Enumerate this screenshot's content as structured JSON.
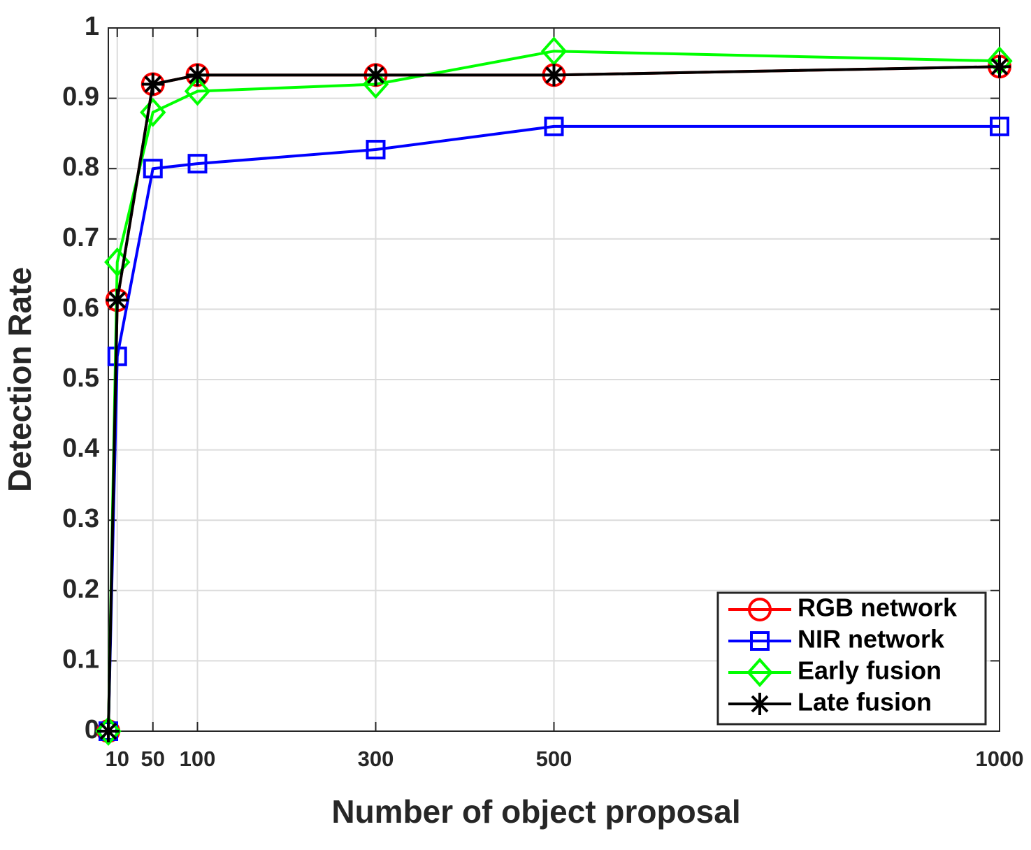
{
  "chart_data": {
    "type": "line",
    "xlabel": "Number of object proposal",
    "ylabel": "Detection Rate",
    "x": [
      0,
      10,
      50,
      100,
      300,
      500,
      1000
    ],
    "xlim": [
      0,
      1000
    ],
    "xticks": [
      10,
      50,
      100,
      300,
      500,
      1000
    ],
    "ylim": [
      0,
      1
    ],
    "yticks": [
      0,
      0.1,
      0.2,
      0.3,
      0.4,
      0.5,
      0.6,
      0.7,
      0.8,
      0.9,
      1
    ],
    "grid": true,
    "legend_position": "lower right",
    "series": [
      {
        "name": "RGB network",
        "color": "#ff0000",
        "marker": "circle",
        "values": [
          0,
          0.613,
          0.92,
          0.933,
          0.933,
          0.933,
          0.945
        ]
      },
      {
        "name": "NIR network",
        "color": "#0000ff",
        "marker": "square",
        "values": [
          0,
          0.533,
          0.8,
          0.807,
          0.827,
          0.86,
          0.86
        ]
      },
      {
        "name": "Early fusion",
        "color": "#00ff00",
        "marker": "diamond",
        "values": [
          0,
          0.667,
          0.88,
          0.91,
          0.92,
          0.967,
          0.953
        ]
      },
      {
        "name": "Late fusion",
        "color": "#000000",
        "marker": "asterisk",
        "values": [
          0,
          0.613,
          0.92,
          0.933,
          0.933,
          0.933,
          0.945
        ]
      }
    ]
  }
}
